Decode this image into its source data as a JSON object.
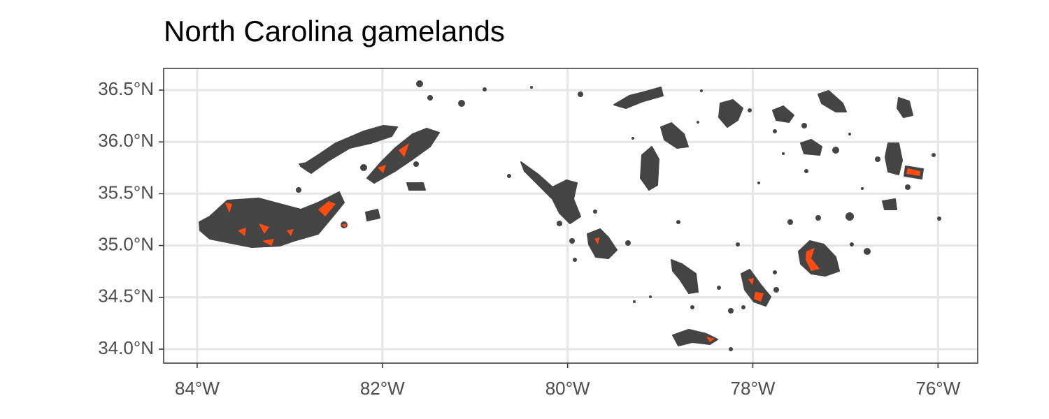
{
  "chart_data": {
    "type": "map",
    "title": "North Carolina gamelands",
    "xlim": [
      -84.362,
      -75.572
    ],
    "ylim": [
      33.865,
      36.709
    ],
    "xticks": [
      {
        "value": -84,
        "label": "84°W"
      },
      {
        "value": -82,
        "label": "82°W"
      },
      {
        "value": -80,
        "label": "80°W"
      },
      {
        "value": -78,
        "label": "78°W"
      },
      {
        "value": -76,
        "label": "76°W"
      }
    ],
    "yticks": [
      {
        "value": 34.0,
        "label": "34.0°N"
      },
      {
        "value": 34.5,
        "label": "34.5°N"
      },
      {
        "value": 35.0,
        "label": "35.0°N"
      },
      {
        "value": 35.5,
        "label": "35.5°N"
      },
      {
        "value": 36.0,
        "label": "36.0°N"
      },
      {
        "value": 36.5,
        "label": "36.5°N"
      }
    ],
    "grid": true
  }
}
